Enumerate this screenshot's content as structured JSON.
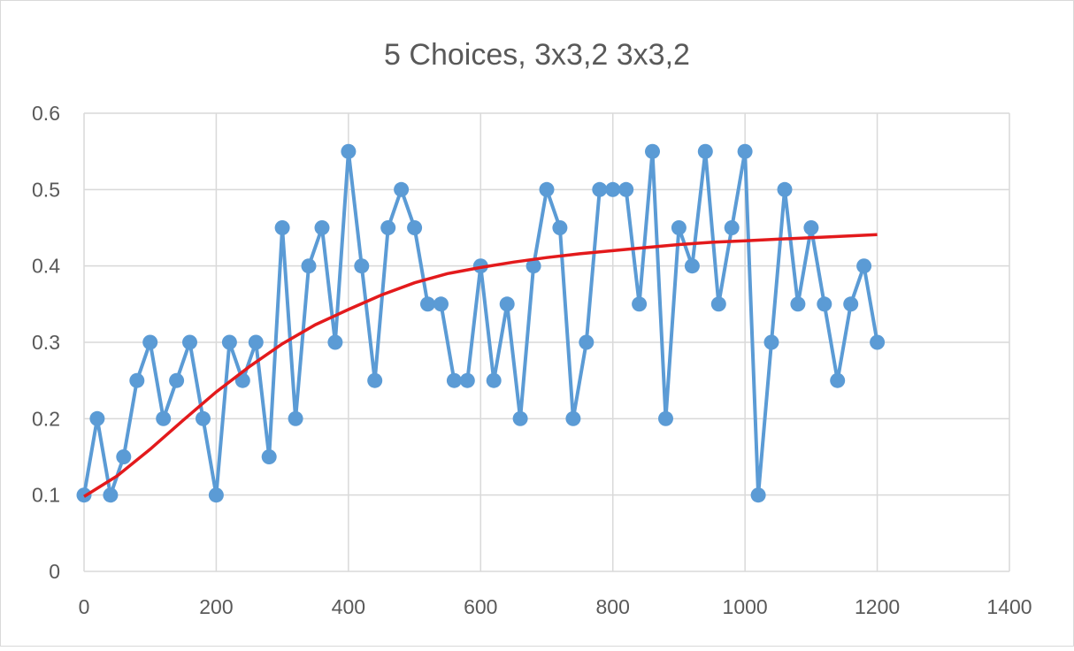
{
  "chart_data": {
    "type": "line",
    "title": "5 Choices, 3x3,2 3x3,2",
    "xlabel": "",
    "ylabel": "",
    "xlim": [
      0,
      1400
    ],
    "ylim": [
      0,
      0.6
    ],
    "x_ticks": [
      "0",
      "200",
      "400",
      "600",
      "800",
      "1000",
      "1200",
      "1400"
    ],
    "y_ticks": [
      "0",
      "0.1",
      "0.2",
      "0.3",
      "0.4",
      "0.5",
      "0.6"
    ],
    "grid": true,
    "legend": "none",
    "series": [
      {
        "color": "#5b9bd5",
        "markers": true,
        "x": [
          0,
          20,
          40,
          60,
          80,
          100,
          120,
          140,
          160,
          180,
          200,
          220,
          240,
          260,
          280,
          300,
          320,
          340,
          360,
          380,
          400,
          420,
          440,
          460,
          480,
          500,
          520,
          540,
          560,
          580,
          600,
          620,
          640,
          660,
          680,
          700,
          720,
          740,
          760,
          780,
          800,
          820,
          840,
          860,
          880,
          900,
          920,
          940,
          960,
          980,
          1000,
          1020,
          1040,
          1060,
          1080,
          1100,
          1120,
          1140,
          1160,
          1180,
          1200
        ],
        "y": [
          0.1,
          0.2,
          0.1,
          0.15,
          0.25,
          0.3,
          0.2,
          0.25,
          0.3,
          0.2,
          0.1,
          0.3,
          0.25,
          0.3,
          0.15,
          0.45,
          0.2,
          0.4,
          0.45,
          0.3,
          0.55,
          0.4,
          0.25,
          0.45,
          0.5,
          0.45,
          0.35,
          0.35,
          0.25,
          0.25,
          0.4,
          0.25,
          0.35,
          0.2,
          0.4,
          0.5,
          0.45,
          0.2,
          0.3,
          0.5,
          0.5,
          0.5,
          0.35,
          0.55,
          0.2,
          0.45,
          0.4,
          0.55,
          0.35,
          0.45,
          0.55,
          0.1,
          0.3,
          0.5,
          0.35,
          0.45,
          0.35,
          0.25,
          0.35,
          0.4,
          0.3
        ]
      },
      {
        "color": "#e31a1c",
        "markers": false,
        "x": [
          0,
          50,
          100,
          150,
          200,
          250,
          300,
          350,
          400,
          450,
          500,
          550,
          600,
          650,
          700,
          750,
          800,
          850,
          900,
          950,
          1000,
          1050,
          1100,
          1150,
          1200
        ],
        "y": [
          0.098,
          0.125,
          0.16,
          0.198,
          0.235,
          0.268,
          0.298,
          0.323,
          0.343,
          0.362,
          0.378,
          0.39,
          0.398,
          0.405,
          0.411,
          0.416,
          0.42,
          0.424,
          0.428,
          0.431,
          0.433,
          0.435,
          0.437,
          0.439,
          0.441
        ]
      }
    ]
  }
}
